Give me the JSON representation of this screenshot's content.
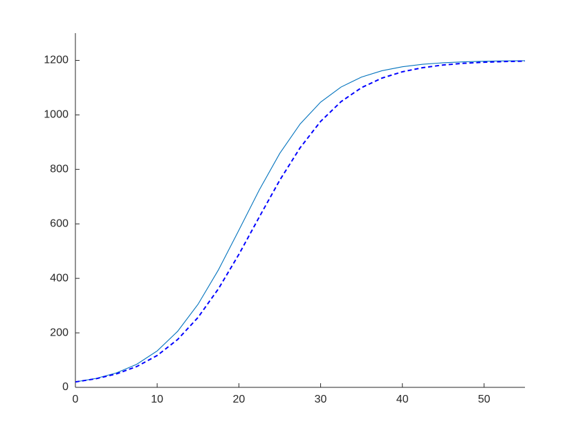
{
  "chart_data": {
    "type": "line",
    "x": [
      0,
      2.5,
      5,
      7.5,
      10,
      12.5,
      15,
      17.5,
      20,
      22.5,
      25,
      27.5,
      30,
      32.5,
      35,
      37.5,
      40,
      42.5,
      45,
      47.5,
      50,
      52.5,
      55
    ],
    "series": [
      {
        "color": "#0072bd",
        "style": "solid",
        "values": [
          20,
          32.6,
          52.9,
          84.7,
          133.6,
          205.4,
          304.8,
          431.3,
          576.7,
          724.8,
          858.6,
          966.9,
          1046.8,
          1102.2,
          1138.7,
          1162.1,
          1176.7,
          1185.8,
          1191.3,
          1194.7,
          1196.8,
          1198.1,
          1198.8
        ]
      },
      {
        "color": "#0000ff",
        "style": "dashed",
        "values": [
          20,
          31.5,
          49.2,
          76.3,
          116.8,
          175.4,
          256.5,
          361.8,
          488.0,
          625.5,
          760.3,
          879.7,
          976.1,
          1048.6,
          1100.0,
          1135.0,
          1158.2,
          1173.4,
          1183.1,
          1189.3,
          1193.2,
          1195.7,
          1197.3
        ]
      }
    ],
    "xlim": [
      0,
      55
    ],
    "xticks": [
      0,
      10,
      20,
      30,
      40,
      50
    ],
    "ylim": [
      0,
      1300
    ],
    "yticks": [
      0,
      200,
      400,
      600,
      800,
      1000,
      1200
    ],
    "grid": false
  }
}
